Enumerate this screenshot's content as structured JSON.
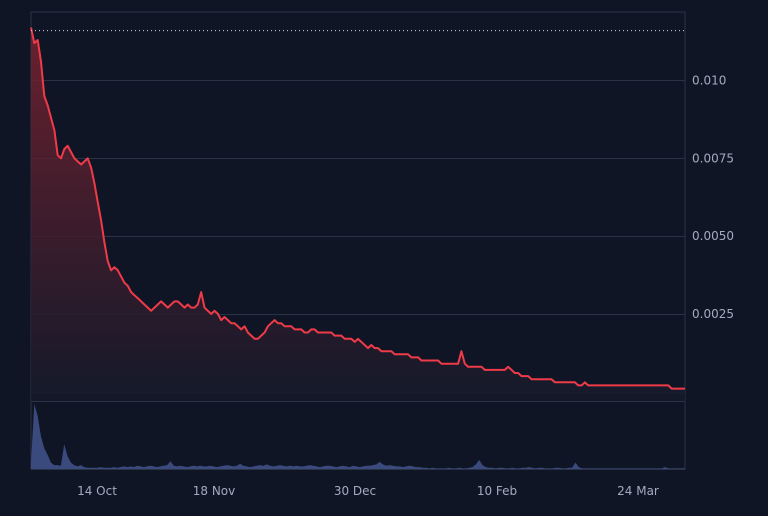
{
  "chart_data": {
    "type": "area",
    "title": "",
    "xlabel": "",
    "ylabel": "",
    "x_tick_labels": [
      "14 Oct",
      "18 Nov",
      "30 Dec",
      "10 Feb",
      "24 Mar"
    ],
    "y_tick_labels": [
      "0.010",
      "0.0075",
      "0.0050",
      "0.0025"
    ],
    "y_ticks": [
      0.01,
      0.0075,
      0.005,
      0.0025
    ],
    "ylim": [
      -0.0003,
      0.0122
    ],
    "reference_line": 0.0116,
    "grid": true,
    "colors": {
      "price_line": "#ef3b48",
      "area_top": "#7a2230",
      "area_bottom": "#141a2b",
      "volume": "#3a4a7d",
      "grid": "#2a3246",
      "reference_line": "#cfd6e4"
    },
    "series": [
      {
        "values": [
          0.0117,
          0.0112,
          0.0113,
          0.0106,
          0.0095,
          0.0092,
          0.0088,
          0.0084,
          0.0076,
          0.0075,
          0.0078,
          0.0079,
          0.0077,
          0.0075,
          0.0074,
          0.0073,
          0.0074,
          0.0075,
          0.0072,
          0.0067,
          0.0061,
          0.0055,
          0.0048,
          0.0042,
          0.0039,
          0.004,
          0.0039,
          0.0037,
          0.0035,
          0.0034,
          0.0032,
          0.0031,
          0.003,
          0.0029,
          0.0028,
          0.0027,
          0.0026,
          0.0027,
          0.0028,
          0.0029,
          0.0028,
          0.0027,
          0.0028,
          0.0029,
          0.0029,
          0.0028,
          0.0027,
          0.0028,
          0.0027,
          0.0027,
          0.0028,
          0.0032,
          0.0027,
          0.0026,
          0.0025,
          0.0026,
          0.0025,
          0.0023,
          0.0024,
          0.0023,
          0.0022,
          0.0022,
          0.0021,
          0.002,
          0.0021,
          0.0019,
          0.0018,
          0.0017,
          0.0017,
          0.0018,
          0.0019,
          0.0021,
          0.0022,
          0.0023,
          0.0022,
          0.0022,
          0.0021,
          0.0021,
          0.0021,
          0.002,
          0.002,
          0.002,
          0.0019,
          0.0019,
          0.002,
          0.002,
          0.0019,
          0.0019,
          0.0019,
          0.0019,
          0.0019,
          0.0018,
          0.0018,
          0.0018,
          0.0017,
          0.0017,
          0.0017,
          0.0016,
          0.0017,
          0.0016,
          0.0015,
          0.0014,
          0.0015,
          0.0014,
          0.0014,
          0.0013,
          0.0013,
          0.0013,
          0.0013,
          0.0012,
          0.0012,
          0.0012,
          0.0012,
          0.0012,
          0.0011,
          0.0011,
          0.0011,
          0.001,
          0.001,
          0.001,
          0.001,
          0.001,
          0.001,
          0.0009,
          0.0009,
          0.0009,
          0.0009,
          0.0009,
          0.0009,
          0.0013,
          0.0009,
          0.0008,
          0.0008,
          0.0008,
          0.0008,
          0.0008,
          0.0007,
          0.0007,
          0.0007,
          0.0007,
          0.0007,
          0.0007,
          0.0007,
          0.0008,
          0.0007,
          0.0006,
          0.0006,
          0.0005,
          0.0005,
          0.0005,
          0.0004,
          0.0004,
          0.0004,
          0.0004,
          0.0004,
          0.0004,
          0.0004,
          0.0003,
          0.0003,
          0.0003,
          0.0003,
          0.0003,
          0.0003,
          0.0003,
          0.0002,
          0.0002,
          0.0003,
          0.0002,
          0.0002,
          0.0002,
          0.0002,
          0.0002,
          0.0002,
          0.0002,
          0.0002,
          0.0002,
          0.0002,
          0.0002,
          0.0002,
          0.0002,
          0.0002,
          0.0002,
          0.0002,
          0.0002,
          0.0002,
          0.0002,
          0.0002,
          0.0002,
          0.0002,
          0.0002,
          0.0002,
          0.0002,
          0.0001,
          0.0001,
          0.0001,
          0.0001,
          0.0001
        ]
      }
    ],
    "volume": [
      0.1,
      1.0,
      0.82,
      0.5,
      0.32,
      0.22,
      0.1,
      0.06,
      0.06,
      0.05,
      0.38,
      0.2,
      0.1,
      0.06,
      0.04,
      0.06,
      0.03,
      0.02,
      0.02,
      0.02,
      0.02,
      0.03,
      0.02,
      0.02,
      0.02,
      0.03,
      0.02,
      0.03,
      0.04,
      0.03,
      0.04,
      0.03,
      0.05,
      0.04,
      0.03,
      0.04,
      0.05,
      0.04,
      0.03,
      0.04,
      0.05,
      0.06,
      0.12,
      0.05,
      0.04,
      0.05,
      0.04,
      0.03,
      0.04,
      0.05,
      0.04,
      0.05,
      0.04,
      0.04,
      0.05,
      0.04,
      0.03,
      0.04,
      0.05,
      0.06,
      0.05,
      0.04,
      0.05,
      0.08,
      0.05,
      0.04,
      0.03,
      0.04,
      0.05,
      0.06,
      0.05,
      0.07,
      0.05,
      0.04,
      0.05,
      0.06,
      0.05,
      0.04,
      0.05,
      0.04,
      0.05,
      0.04,
      0.04,
      0.05,
      0.06,
      0.05,
      0.04,
      0.03,
      0.04,
      0.05,
      0.05,
      0.04,
      0.03,
      0.04,
      0.05,
      0.04,
      0.03,
      0.05,
      0.04,
      0.03,
      0.04,
      0.05,
      0.05,
      0.06,
      0.07,
      0.11,
      0.07,
      0.05,
      0.06,
      0.05,
      0.04,
      0.04,
      0.03,
      0.04,
      0.05,
      0.04,
      0.03,
      0.03,
      0.02,
      0.02,
      0.01,
      0.02,
      0.01,
      0.01,
      0.01,
      0.01,
      0.02,
      0.01,
      0.01,
      0.02,
      0.01,
      0.01,
      0.02,
      0.03,
      0.07,
      0.14,
      0.06,
      0.03,
      0.02,
      0.02,
      0.01,
      0.02,
      0.02,
      0.01,
      0.01,
      0.02,
      0.01,
      0.01,
      0.02,
      0.02,
      0.03,
      0.02,
      0.01,
      0.02,
      0.02,
      0.01,
      0.01,
      0.01,
      0.02,
      0.02,
      0.01,
      0.01,
      0.02,
      0.02,
      0.1,
      0.03,
      0.01,
      0.01,
      0.01,
      0.01,
      0.01,
      0.01,
      0.01,
      0.01,
      0.01,
      0.01,
      0.01,
      0.01,
      0.01,
      0.01,
      0.01,
      0.01,
      0.01,
      0.01,
      0.01,
      0.01,
      0.01,
      0.01,
      0.01,
      0.01,
      0.01,
      0.03,
      0.01,
      0.01,
      0.01,
      0.01,
      0.01,
      0.01
    ]
  }
}
